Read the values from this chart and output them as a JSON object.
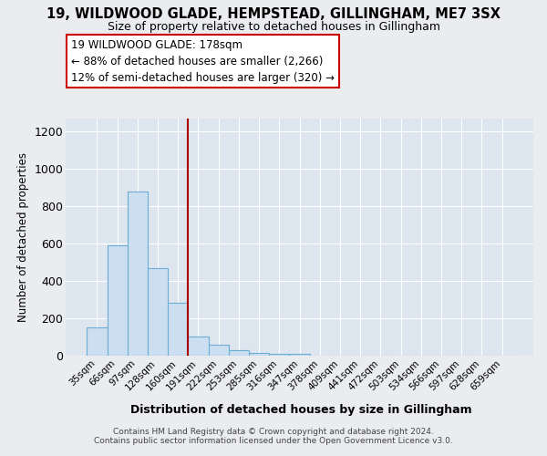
{
  "title": "19, WILDWOOD GLADE, HEMPSTEAD, GILLINGHAM, ME7 3SX",
  "subtitle": "Size of property relative to detached houses in Gillingham",
  "xlabel": "Distribution of detached houses by size in Gillingham",
  "ylabel": "Number of detached properties",
  "categories": [
    "35sqm",
    "66sqm",
    "97sqm",
    "128sqm",
    "160sqm",
    "191sqm",
    "222sqm",
    "253sqm",
    "285sqm",
    "316sqm",
    "347sqm",
    "378sqm",
    "409sqm",
    "441sqm",
    "472sqm",
    "503sqm",
    "534sqm",
    "566sqm",
    "597sqm",
    "628sqm",
    "659sqm"
  ],
  "values": [
    150,
    590,
    880,
    470,
    285,
    105,
    57,
    27,
    15,
    10,
    8,
    0,
    0,
    0,
    0,
    0,
    0,
    0,
    0,
    0,
    0
  ],
  "bar_color": "#ccdff0",
  "bar_edge_color": "#6aaed6",
  "vline_color": "#aa0000",
  "vline_pos": 4.5,
  "annotation_title": "19 WILDWOOD GLADE: 178sqm",
  "annotation_line1": "← 88% of detached houses are smaller (2,266)",
  "annotation_line2": "12% of semi-detached houses are larger (320) →",
  "annotation_box_edge": "#cc0000",
  "ylim_max": 1270,
  "yticks": [
    0,
    200,
    400,
    600,
    800,
    1000,
    1200
  ],
  "bg_color": "#dde5ef",
  "fig_bg_color": "#eaecf0",
  "footer1": "Contains HM Land Registry data © Crown copyright and database right 2024.",
  "footer2": "Contains public sector information licensed under the Open Government Licence v3.0."
}
